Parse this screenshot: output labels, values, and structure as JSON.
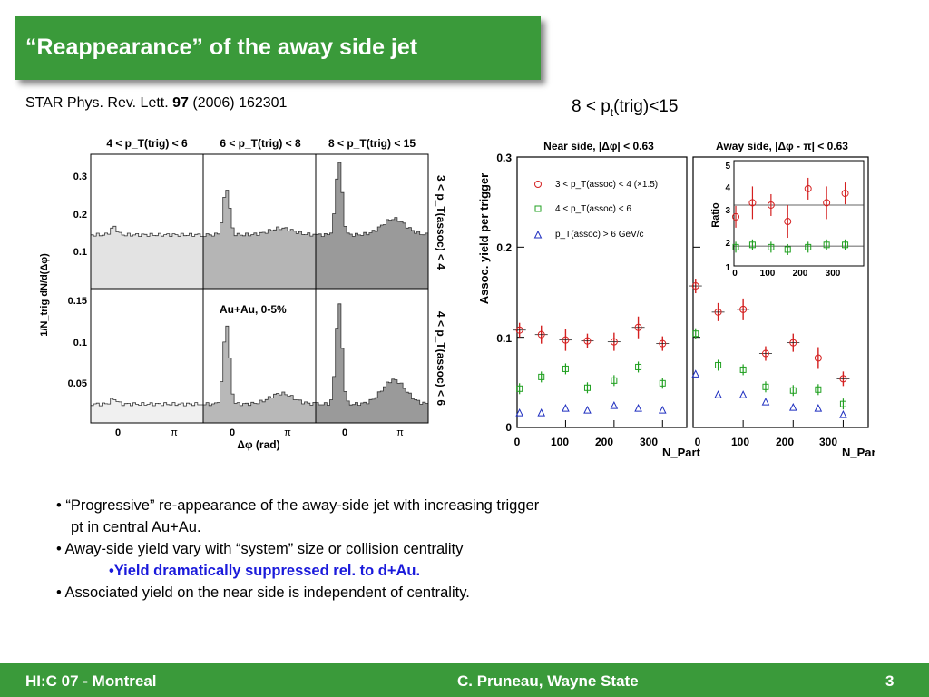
{
  "slide": {
    "title": "“Reappearance” of the away side jet",
    "reference": {
      "prefix": "STAR Phys. Rev. Lett. ",
      "volume": "97",
      "suffix": " (2006) 162301"
    },
    "trigger_label": {
      "pre": "8 < p",
      "sub": "t",
      "post": "(trig)<15"
    }
  },
  "left_figure": {
    "column_titles": [
      "4 < p_T(trig) < 6",
      "6 < p_T(trig) < 8",
      "8 < p_T(trig) < 15"
    ],
    "row_labels": [
      "3 < p_T(assoc) < 4",
      "4 < p_T(assoc) < 6"
    ],
    "top_yticks": [
      "0.3",
      "0.2",
      "0.1"
    ],
    "bottom_yticks": [
      "0.15",
      "0.1",
      "0.05"
    ],
    "ylabel": "1/N_trig dN/d(Δφ)",
    "xticks": [
      "0",
      "π"
    ],
    "xlabel": "Δφ (rad)",
    "annotation": "Au+Au, 0-5%"
  },
  "right_figure": {
    "near_title": "Near side, |Δφ| < 0.63",
    "away_title": "Away side, |Δφ - π| < 0.63",
    "ylabel": "Assoc. yield per trigger",
    "yticks": [
      "0.3",
      "0.2",
      "0.1",
      "0"
    ],
    "xticks": [
      "0",
      "100",
      "200",
      "300"
    ],
    "xlabel": "N_Part",
    "legend": [
      "3 < p_T(assoc) < 4  (×1.5)",
      "4 < p_T(assoc) < 6",
      "p_T(assoc) > 6 GeV/c"
    ],
    "inset": {
      "ylabel": "Ratio",
      "yticks": [
        "5",
        "4",
        "3",
        "2",
        "1"
      ],
      "xticks": [
        "0",
        "100",
        "200",
        "300"
      ]
    }
  },
  "chart_data": [
    {
      "type": "scatter",
      "title": "Near side, |Δφ| < 0.63",
      "xlabel": "N_Part",
      "ylabel": "Assoc. yield per trigger",
      "xlim": [
        0,
        350
      ],
      "ylim": [
        0,
        0.3
      ],
      "series": [
        {
          "name": "3 < p_T(assoc) < 4 (×1.5)",
          "x": [
            5,
            50,
            100,
            145,
            200,
            250,
            300
          ],
          "y": [
            0.108,
            0.103,
            0.097,
            0.096,
            0.095,
            0.111,
            0.093
          ]
        },
        {
          "name": "4 < p_T(assoc) < 6",
          "x": [
            5,
            50,
            100,
            145,
            200,
            250,
            300
          ],
          "y": [
            0.043,
            0.056,
            0.065,
            0.044,
            0.052,
            0.067,
            0.049
          ]
        },
        {
          "name": "p_T(assoc) > 6 GeV/c",
          "x": [
            5,
            50,
            100,
            145,
            200,
            250,
            300
          ],
          "y": [
            0.016,
            0.016,
            0.021,
            0.019,
            0.024,
            0.021,
            0.019
          ]
        }
      ]
    },
    {
      "type": "scatter",
      "title": "Away side, |Δφ - π| < 0.63",
      "xlabel": "N_Part",
      "xlim": [
        0,
        350
      ],
      "ylim": [
        0,
        0.3
      ],
      "series": [
        {
          "name": "3 < p_T(assoc) < 4 (×1.5)",
          "x": [
            5,
            50,
            100,
            145,
            200,
            250,
            300
          ],
          "y": [
            0.157,
            0.128,
            0.131,
            0.082,
            0.094,
            0.077,
            0.054
          ]
        },
        {
          "name": "4 < p_T(assoc) < 6",
          "x": [
            5,
            50,
            100,
            145,
            200,
            250,
            300
          ],
          "y": [
            0.104,
            0.069,
            0.064,
            0.045,
            0.041,
            0.042,
            0.026
          ]
        },
        {
          "name": "p_T(assoc) > 6 GeV/c",
          "x": [
            5,
            50,
            100,
            145,
            200,
            250,
            300
          ],
          "y": [
            0.059,
            0.036,
            0.036,
            0.028,
            0.022,
            0.021,
            0.014
          ]
        }
      ]
    },
    {
      "type": "scatter",
      "title": "",
      "ylabel": "Ratio",
      "xlim": [
        0,
        350
      ],
      "ylim": [
        1,
        5.5
      ],
      "series": [
        {
          "name": "3 < p_T(assoc) < 4",
          "x": [
            5,
            50,
            100,
            145,
            200,
            250,
            300
          ],
          "y": [
            3.1,
            3.7,
            3.6,
            2.9,
            4.3,
            3.7,
            4.1
          ]
        },
        {
          "name": "4 < p_T(assoc) < 6",
          "x": [
            5,
            50,
            100,
            145,
            200,
            250,
            300
          ],
          "y": [
            1.8,
            1.9,
            1.8,
            1.7,
            1.8,
            1.9,
            1.9
          ]
        }
      ]
    }
  ],
  "bullets": {
    "b1_line1": "• “Progressive” re-appearance of the away-side jet with increasing trigger",
    "b1_line2": "pt in central Au+Au.",
    "b2": "• Away-side yield vary with “system” size or collision centrality",
    "b3": "•Yield dramatically suppressed rel. to d+Au.",
    "b4": "• Associated yield on the near side is independent of centrality."
  },
  "footer": {
    "left": "HI:C 07 - Montreal",
    "center": "C. Pruneau, Wayne State",
    "page": "3"
  },
  "colors": {
    "green": "#3a9a3a",
    "red": "#d42020",
    "green_marker": "#20a020",
    "blue": "#2030c0",
    "highlight": "#1a1adb"
  }
}
